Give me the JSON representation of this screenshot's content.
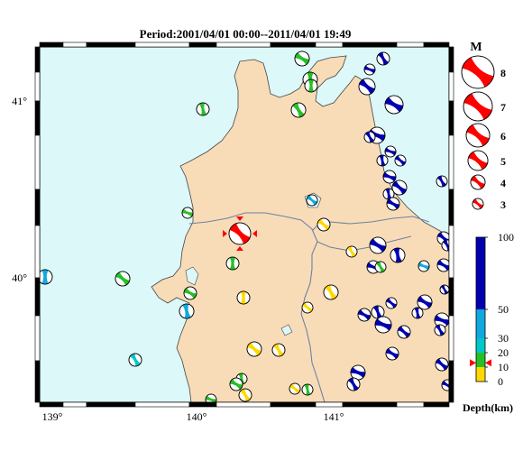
{
  "title": "Period:2001/04/01 00:00--2011/04/01 19:49",
  "axes": {
    "lon_ticks": [
      "139°",
      "140°",
      "141°"
    ],
    "lat_ticks": [
      "41°",
      "40°"
    ]
  },
  "magnitude_legend": {
    "heading": "M",
    "labels": [
      "8",
      "7",
      "6",
      "5",
      "4",
      "3"
    ],
    "color": "#ff0000"
  },
  "depth_legend": {
    "title": "Depth(km)",
    "ticks": [
      "100",
      "50",
      "30",
      "20",
      "10",
      "0"
    ],
    "colors": {
      "0-10": "#ffd800",
      "10-20": "#25c025",
      "20-30": "#00c8c8",
      "30-50": "#10a8e0",
      "50-100": "#0000b0"
    },
    "marker_depth_km": 13
  },
  "colors": {
    "sea": "#dcf8f8",
    "land": "#f8dcb8",
    "border": "#7080a0",
    "highlight_event": "#ff0000"
  },
  "highlighted_event": {
    "lon": 140.38,
    "lat": 40.23
  }
}
